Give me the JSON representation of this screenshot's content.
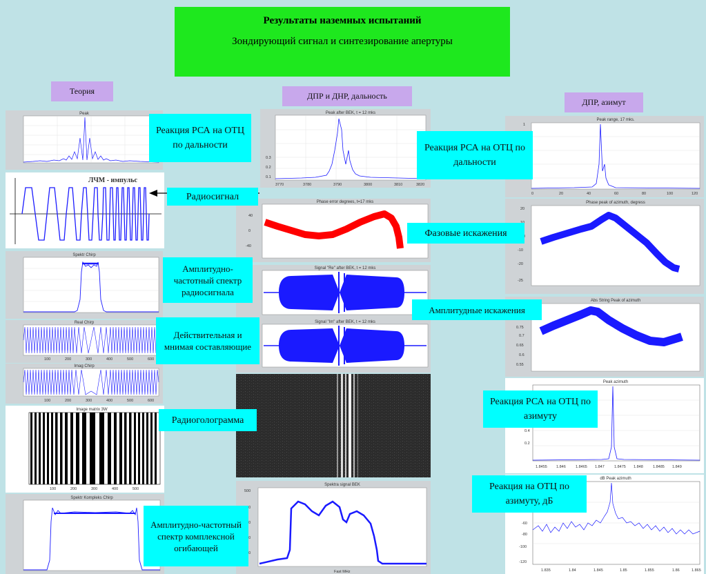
{
  "header": {
    "line1": "Результаты наземных испытаний",
    "line2": "Зондирующий сигнал и синтезирование апертуры"
  },
  "sections": {
    "theory": "Теория",
    "dpr_dnr": "ДПР и ДНР, дальность",
    "dpr_az": "ДПР, азимут"
  },
  "captions": {
    "range_resp_left": "Реакция РСА на ОТЦ по дальности",
    "radiosignal": "Радиосигнал",
    "amp_freq_spec": "Амплитудно-частотный спектр радиосигнала",
    "real_imag": "Действительная и мнимая составляющие",
    "hologram": "Радиоголограмма",
    "complex_env_spec": "Амплитудно-частотный спектр комплексной огибающей",
    "range_resp_right": "Реакция РСА на ОТЦ по дальности",
    "phase_dist": "Фазовые искажения",
    "amp_dist": "Амплитудные искажения",
    "az_resp": "Реакция РСА на ОТЦ по азимуту",
    "az_resp_db": "Реакция на ОТЦ по азимуту, дБ"
  },
  "plots": {
    "peak": "Peak",
    "lchm": "ЛЧМ - импульс",
    "spektr_chirp": "Spektr Chirp",
    "real_chirp": "Real Chirp",
    "imag_chirp": "Imag Chirp",
    "image_matrix": "Image matrix 3W",
    "spektr_kompleks": "Spektr Kompleks Chirp",
    "peak_after_bek": "Peak after BEK, t = 12 mks",
    "phase_error": "Phase error degrees, t=17 mks",
    "signal_re": "Signal \"Re\" after BEK, t = 12 mks",
    "signal_im": "Signal \"Im\" after BEK, t = 12 mks",
    "spektra_bek": "Spektra signal BEK",
    "peak_range": "Peak range, 17 mks.",
    "phase_peak_az": "Phase peak of azimuth, degress",
    "abs_string_peak": "Abs String Peak of azimuth",
    "peak_azimuth": "Peak azimuth",
    "db_peak_azimuth": "dB Peak azimuth",
    "fast_mhz": "Fast MHz"
  },
  "colors": {
    "accent_green": "#1ee81e",
    "caption_cyan": "#00ffff",
    "section_purple": "#c8a8ec",
    "background": "#bfe2e6",
    "trace_blue": "#1a1aff",
    "trace_red": "#ff0000"
  }
}
